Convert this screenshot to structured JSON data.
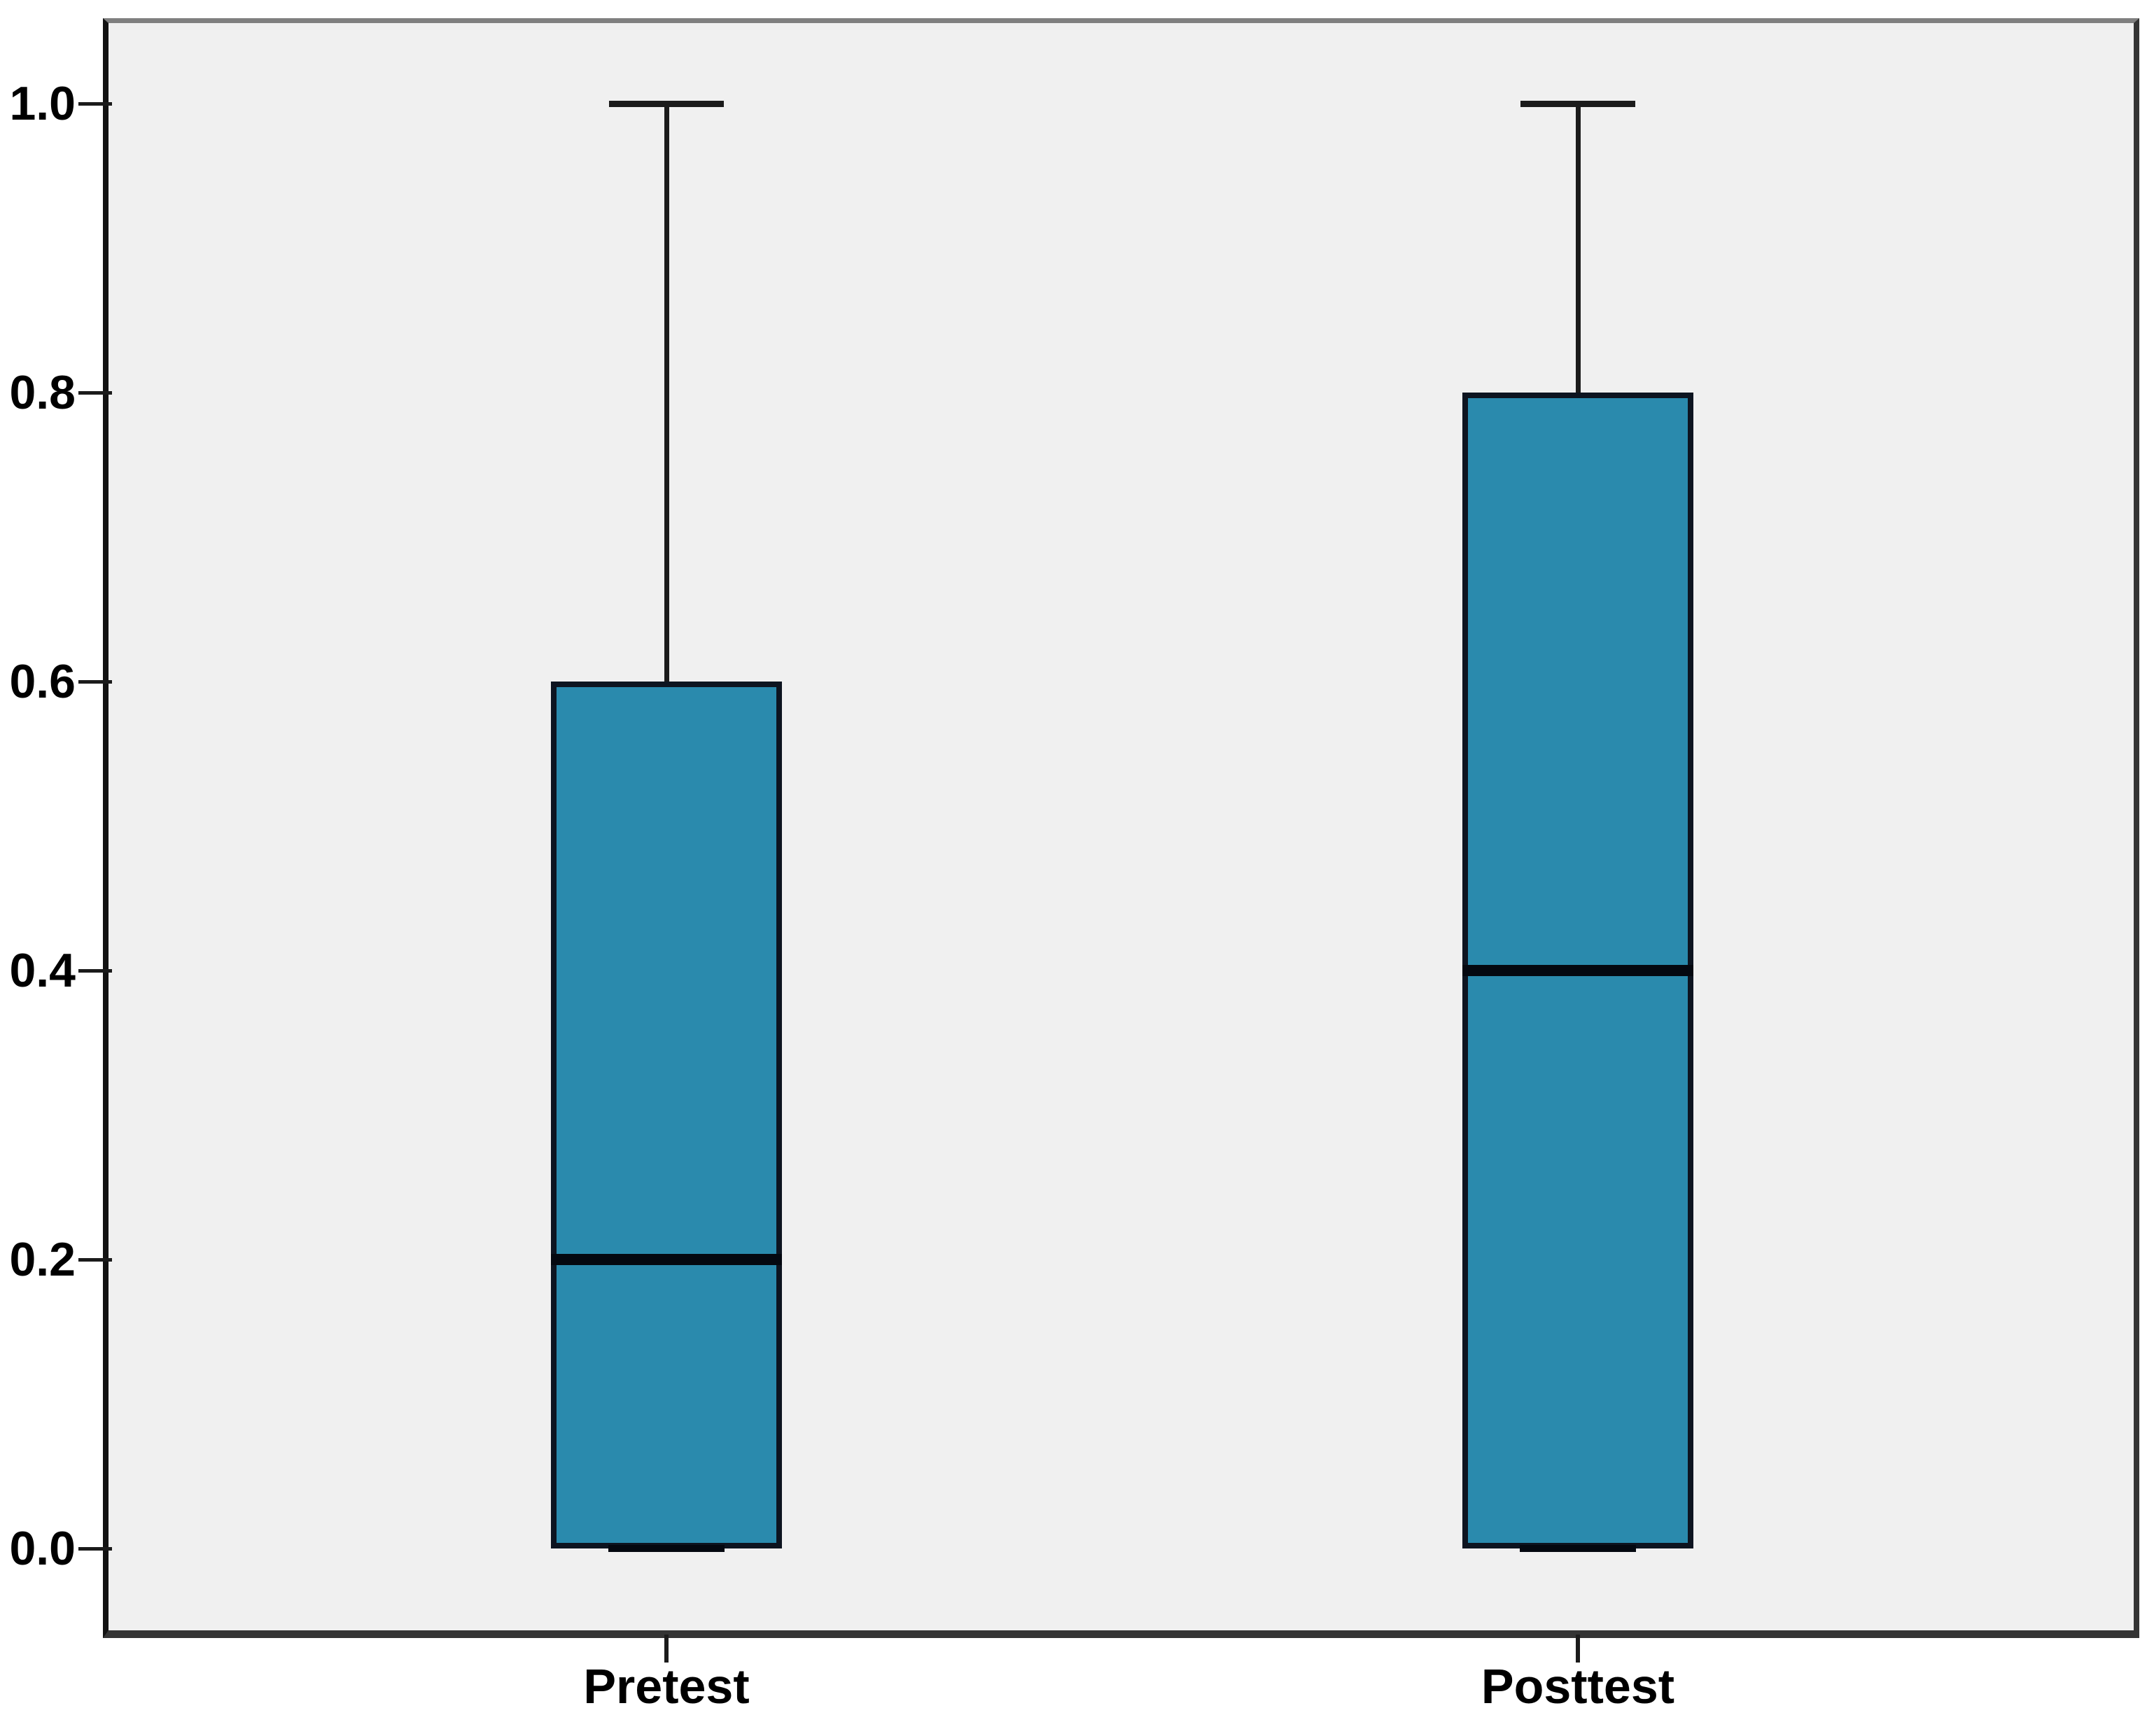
{
  "chart_data": {
    "type": "box",
    "title": "",
    "xlabel": "",
    "ylabel": "",
    "categories": [
      "Pretest",
      "Posttest"
    ],
    "series": [
      {
        "name": "Pretest",
        "whisker_low": 0.0,
        "q1": 0.0,
        "median": 0.2,
        "q3": 0.6,
        "whisker_high": 1.0
      },
      {
        "name": "Posttest",
        "whisker_low": 0.0,
        "q1": 0.0,
        "median": 0.4,
        "q3": 0.8,
        "whisker_high": 1.0
      }
    ],
    "ylim": [
      0.0,
      1.0
    ],
    "y_ticks": [
      0.0,
      0.2,
      0.4,
      0.6,
      0.8,
      1.0
    ],
    "y_tick_labels": [
      "0.0",
      "0.2",
      "0.4",
      "0.6",
      "0.8",
      "1.0"
    ],
    "grid": false,
    "legend": false,
    "colors": {
      "box_fill": "#2a8aad",
      "box_border": "#0d1420",
      "median": "#040810",
      "whisker": "#1b1b1b",
      "plot_background": "#f0f0f0",
      "page_background": "#ffffff",
      "tick_text": "#000000"
    }
  }
}
